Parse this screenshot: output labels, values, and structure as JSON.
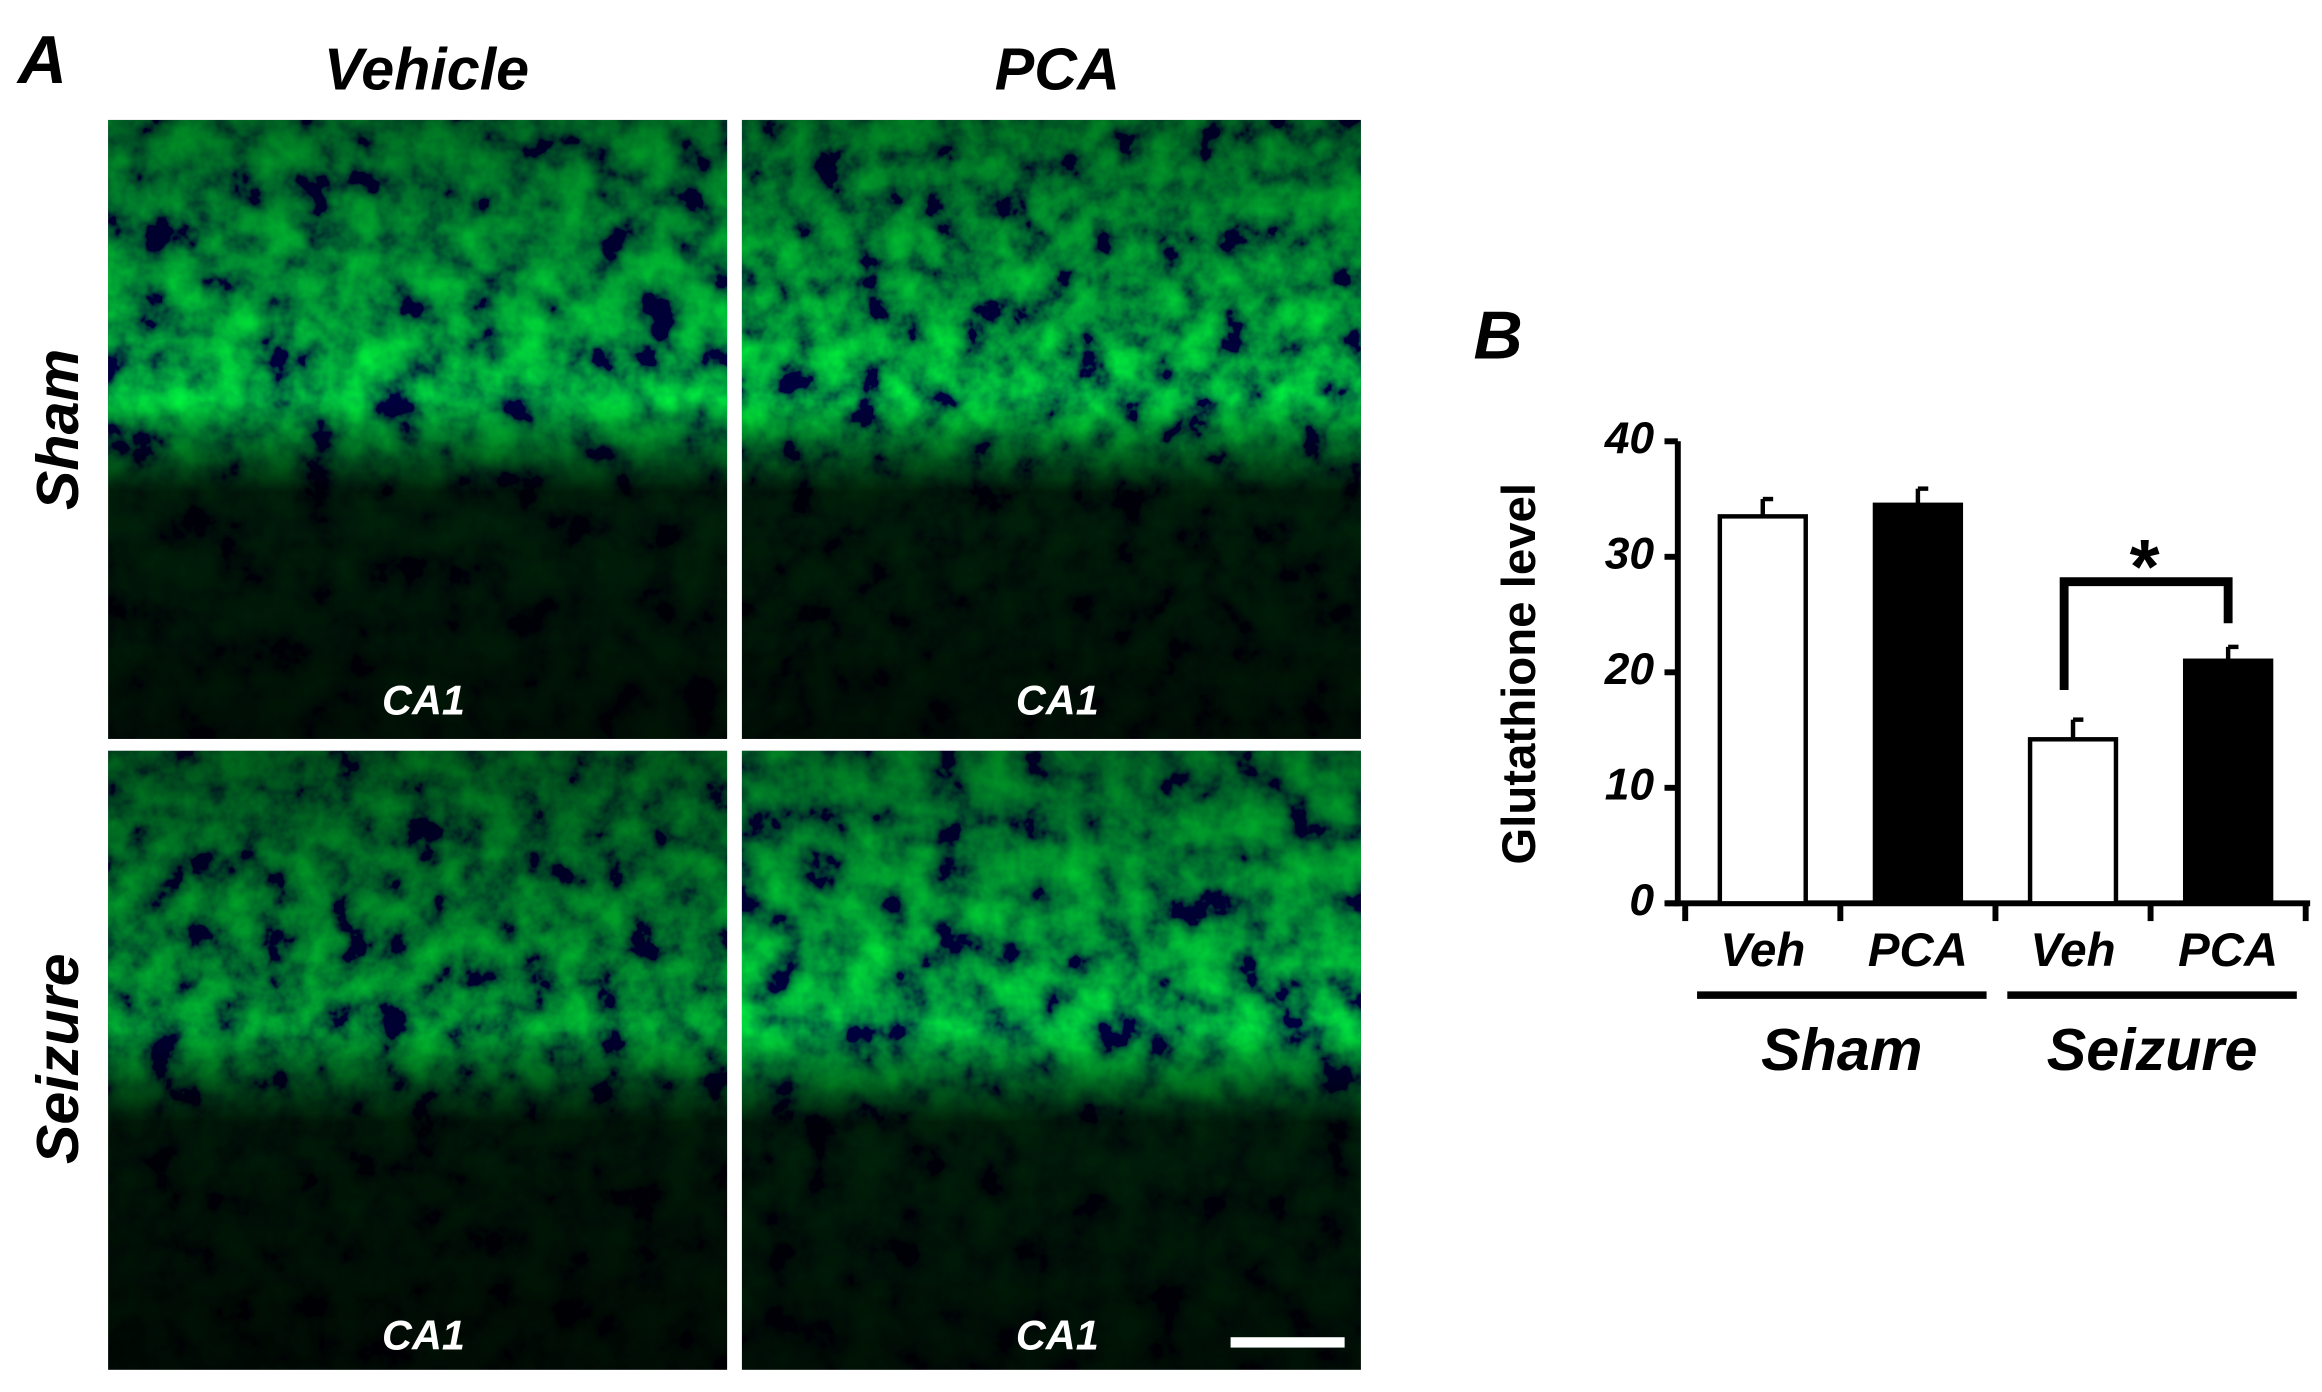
{
  "panel_a": {
    "label": "A",
    "columns": [
      "Vehicle",
      "PCA"
    ],
    "rows": [
      "Sham",
      "Seizure"
    ],
    "region_labels": [
      "CA1",
      "CA1",
      "CA1",
      "CA1"
    ]
  },
  "chart_data": {
    "type": "bar",
    "panel_label": "B",
    "y_label": "Glutathione level",
    "categories": [
      "Veh",
      "PCA",
      "Veh",
      "PCA"
    ],
    "groups": [
      "Sham",
      "Seizure"
    ],
    "values": [
      33.5,
      34.5,
      14.2,
      21
    ],
    "errors": [
      1.5,
      1.4,
      1.7,
      1.2
    ],
    "colors": [
      "#ffffff",
      "#000000",
      "#ffffff",
      "#000000"
    ],
    "ylim": [
      0,
      40
    ],
    "yticks": [
      0,
      10,
      20,
      30,
      40
    ],
    "annotations": [
      {
        "text": "*"
      }
    ]
  }
}
